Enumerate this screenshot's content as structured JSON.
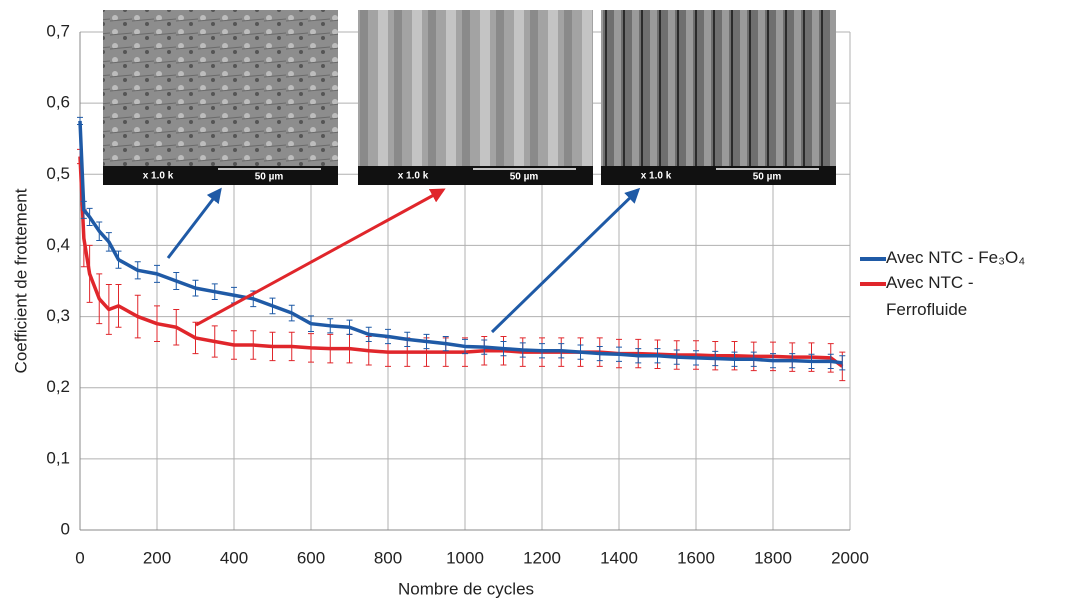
{
  "chart_data": {
    "type": "line",
    "x_label": "Nombre de cycles",
    "y_label": "Coefficient de frottement",
    "x": [
      0,
      10,
      25,
      50,
      75,
      100,
      150,
      200,
      250,
      300,
      350,
      400,
      450,
      500,
      550,
      600,
      650,
      700,
      750,
      800,
      850,
      900,
      950,
      1000,
      1050,
      1100,
      1150,
      1200,
      1250,
      1300,
      1350,
      1400,
      1450,
      1500,
      1550,
      1600,
      1650,
      1700,
      1750,
      1800,
      1850,
      1900,
      1950,
      1980
    ],
    "series": [
      {
        "name": "Avec NTC - Fe₃O₄",
        "color": "#1f5aa6",
        "values": [
          0.575,
          0.45,
          0.44,
          0.42,
          0.405,
          0.38,
          0.365,
          0.36,
          0.35,
          0.34,
          0.335,
          0.33,
          0.325,
          0.315,
          0.305,
          0.29,
          0.287,
          0.285,
          0.275,
          0.272,
          0.268,
          0.265,
          0.262,
          0.258,
          0.257,
          0.255,
          0.253,
          0.252,
          0.252,
          0.25,
          0.248,
          0.247,
          0.245,
          0.245,
          0.243,
          0.242,
          0.241,
          0.24,
          0.24,
          0.238,
          0.238,
          0.237,
          0.237,
          0.235
        ],
        "errors": [
          0.005,
          0.012,
          0.012,
          0.013,
          0.013,
          0.012,
          0.012,
          0.012,
          0.012,
          0.011,
          0.011,
          0.011,
          0.011,
          0.011,
          0.011,
          0.011,
          0.01,
          0.01,
          0.01,
          0.01,
          0.01,
          0.01,
          0.01,
          0.01,
          0.01,
          0.01,
          0.01,
          0.01,
          0.01,
          0.01,
          0.01,
          0.01,
          0.01,
          0.01,
          0.01,
          0.01,
          0.01,
          0.01,
          0.01,
          0.01,
          0.01,
          0.01,
          0.01,
          0.01
        ]
      },
      {
        "name": "Avec NTC - Ferrofluide",
        "color": "#e0262b",
        "values": [
          0.525,
          0.41,
          0.36,
          0.325,
          0.31,
          0.315,
          0.3,
          0.29,
          0.285,
          0.27,
          0.265,
          0.26,
          0.26,
          0.258,
          0.258,
          0.256,
          0.255,
          0.255,
          0.252,
          0.25,
          0.25,
          0.25,
          0.25,
          0.25,
          0.252,
          0.252,
          0.25,
          0.25,
          0.25,
          0.25,
          0.25,
          0.248,
          0.248,
          0.247,
          0.246,
          0.246,
          0.245,
          0.245,
          0.244,
          0.244,
          0.243,
          0.243,
          0.242,
          0.23
        ],
        "errors": [
          0.01,
          0.04,
          0.04,
          0.035,
          0.035,
          0.03,
          0.03,
          0.025,
          0.025,
          0.022,
          0.022,
          0.02,
          0.02,
          0.02,
          0.02,
          0.02,
          0.02,
          0.02,
          0.02,
          0.02,
          0.02,
          0.02,
          0.02,
          0.02,
          0.02,
          0.02,
          0.02,
          0.02,
          0.02,
          0.02,
          0.02,
          0.02,
          0.02,
          0.02,
          0.02,
          0.02,
          0.02,
          0.02,
          0.02,
          0.02,
          0.02,
          0.02,
          0.02,
          0.02
        ]
      }
    ],
    "xlim": [
      0,
      2000
    ],
    "xticks": [
      0,
      200,
      400,
      600,
      800,
      1000,
      1200,
      1400,
      1600,
      1800,
      2000
    ],
    "ylim": [
      0,
      0.7
    ],
    "yticks": [
      0,
      {
        "value": 0.1,
        "label": "0,1"
      },
      {
        "value": 0.2,
        "label": "0,2"
      },
      {
        "value": 0.3,
        "label": "0,3"
      },
      {
        "value": 0.4,
        "label": "0,4"
      },
      {
        "value": 0.5,
        "label": "0,5"
      },
      {
        "value": 0.6,
        "label": "0,6"
      },
      {
        "value": 0.7,
        "label": "0,7"
      }
    ],
    "grid": true,
    "insets": [
      {
        "magnification": "x 1.0 k",
        "scale_bar": "50 µm"
      },
      {
        "magnification": "x 1.0 k",
        "scale_bar": "50 µm"
      },
      {
        "magnification": "x 1.0 k",
        "scale_bar": "50 µm"
      }
    ]
  }
}
